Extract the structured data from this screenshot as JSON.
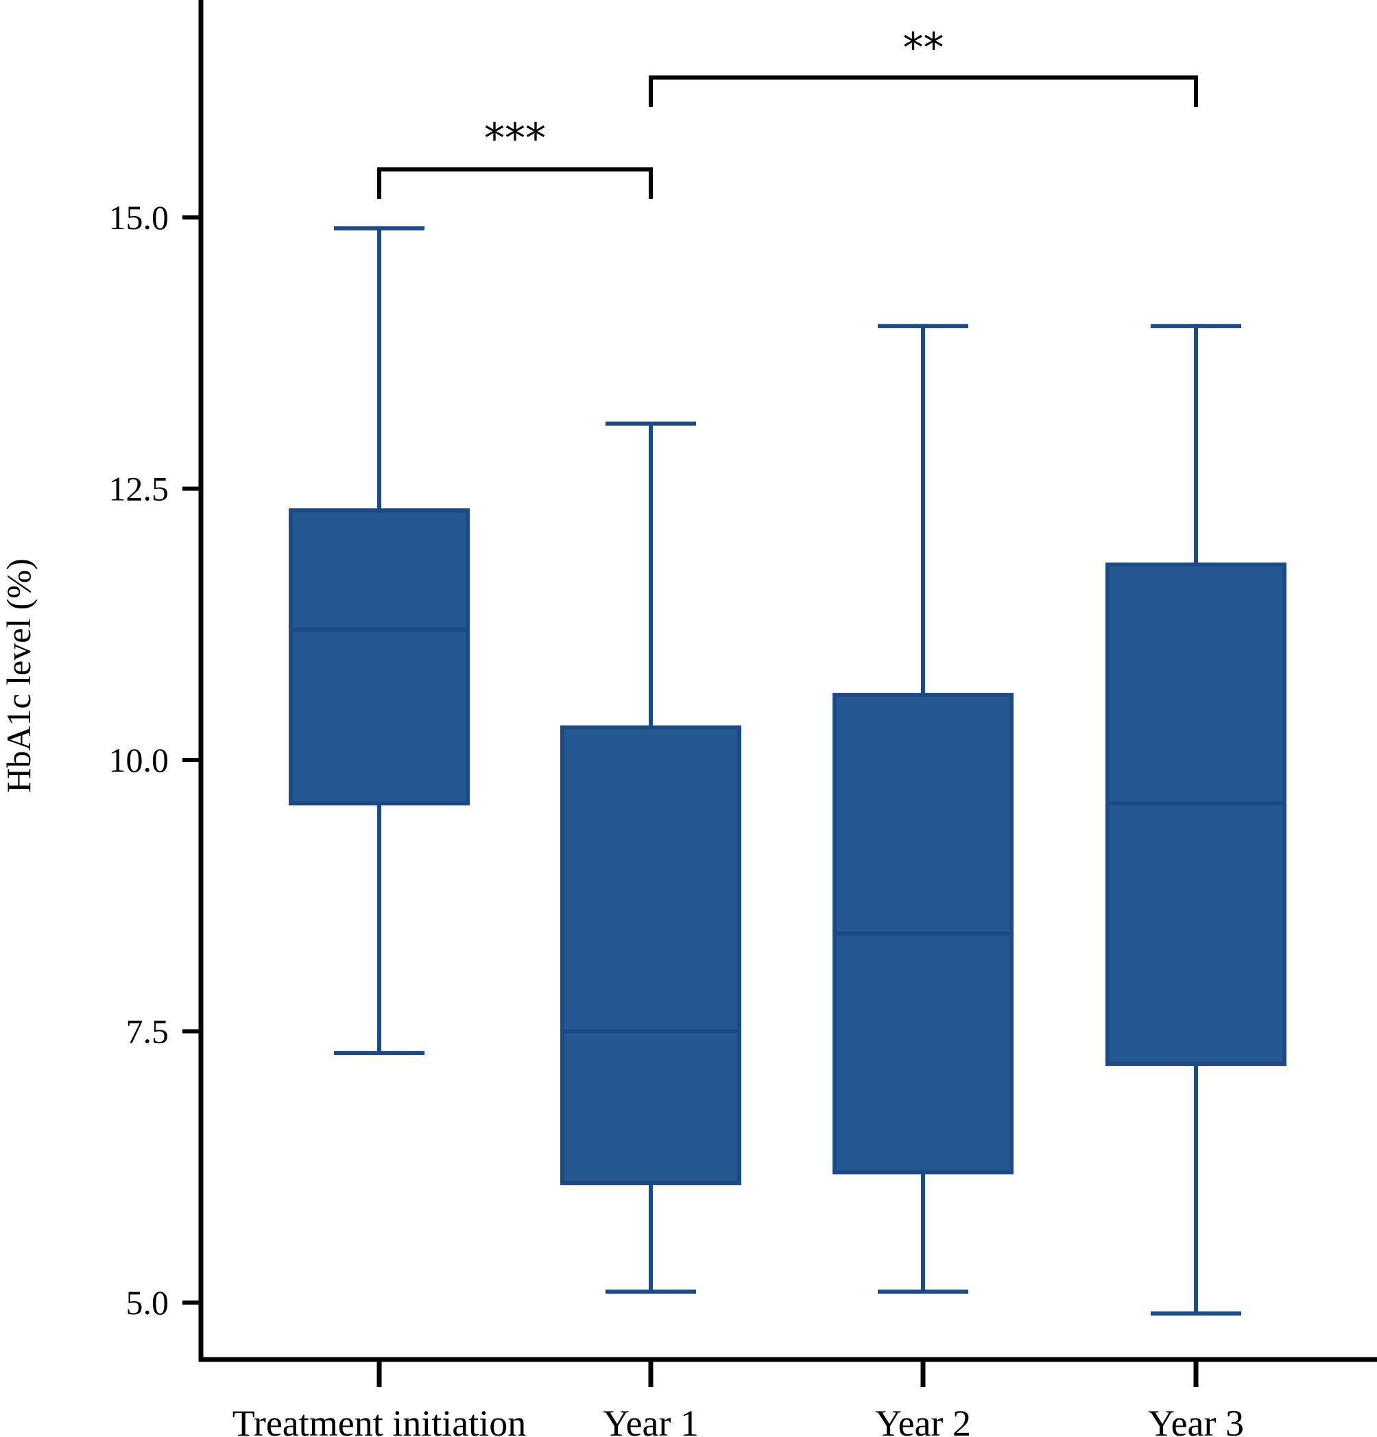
{
  "chart_data": {
    "type": "box",
    "title": "",
    "xlabel": "",
    "ylabel": "HbA1c  level (%)",
    "ylim": [
      4.5,
      17.0
    ],
    "yticks": [
      5.0,
      7.5,
      10.0,
      12.5,
      15.0
    ],
    "ytick_labels": [
      "5.0",
      "7.5",
      "10.0",
      "12.5",
      "15.0"
    ],
    "categories": [
      "Treatment initiation",
      "Year 1",
      "Year 2",
      "Year 3"
    ],
    "boxes": [
      {
        "category": "Treatment initiation",
        "whisker_low": 7.3,
        "q1": 9.6,
        "median": 11.2,
        "q3": 12.3,
        "whisker_high": 14.9
      },
      {
        "category": "Year 1",
        "whisker_low": 5.1,
        "q1": 6.1,
        "median": 7.5,
        "q3": 10.3,
        "whisker_high": 13.1
      },
      {
        "category": "Year 2",
        "whisker_low": 5.1,
        "q1": 6.2,
        "median": 8.4,
        "q3": 10.6,
        "whisker_high": 14.0
      },
      {
        "category": "Year 3",
        "whisker_low": 4.9,
        "q1": 7.2,
        "median": 9.6,
        "q3": 11.8,
        "whisker_high": 14.0
      }
    ],
    "significance": [
      {
        "from": "Treatment initiation",
        "to": "Year 1",
        "label": "***"
      },
      {
        "from": "Year 1",
        "to": "Year 3",
        "label": "**"
      }
    ],
    "grid": false,
    "colors": {
      "box_fill": "#255891",
      "box_stroke": "#1b4a86",
      "whisker": "#1b4a86",
      "axis": "#000000"
    }
  }
}
